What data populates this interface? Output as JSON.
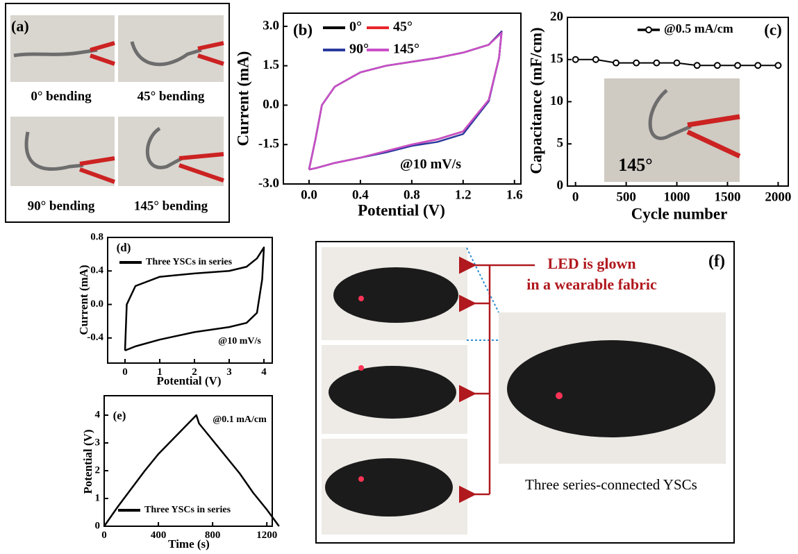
{
  "chart_data": [
    {
      "type": "line",
      "panel_label": "(b)",
      "xlabel": "Potential (V)",
      "ylabel": "Current (mA)",
      "annotation": "@10 mV/s",
      "xlim": [
        -0.2,
        1.65
      ],
      "xticks": [
        {
          "value": 0,
          "label": "0.0"
        },
        0.4,
        0.8,
        1.2,
        1.6
      ],
      "ylim": [
        -3.0,
        3.5
      ],
      "yticks": [
        {
          "value": -3,
          "label": "-3.0"
        },
        -1.5,
        {
          "value": 0,
          "label": "0.0"
        },
        1.5,
        {
          "value": 3,
          "label": "3.0"
        }
      ],
      "series": [
        {
          "name": "0°",
          "color": "#000000",
          "x": [
            0,
            0.05,
            0.1,
            0.2,
            0.4,
            0.6,
            0.8,
            1.0,
            1.2,
            1.4,
            1.5,
            1.48,
            1.4,
            1.2,
            1.0,
            0.8,
            0.6,
            0.4,
            0.2,
            0.05,
            0
          ],
          "values": [
            -2.45,
            -1.3,
            0.0,
            0.7,
            1.25,
            1.5,
            1.65,
            1.8,
            2.0,
            2.3,
            2.8,
            1.8,
            0.2,
            -1.0,
            -1.3,
            -1.5,
            -1.75,
            -2.0,
            -2.2,
            -2.4,
            -2.45
          ]
        },
        {
          "name": "45°",
          "color": "#e8262a",
          "x": [
            0,
            0.05,
            0.1,
            0.2,
            0.4,
            0.6,
            0.8,
            1.0,
            1.2,
            1.4,
            1.5,
            1.48,
            1.4,
            1.2,
            1.0,
            0.8,
            0.6,
            0.4,
            0.2,
            0.05,
            0
          ],
          "values": [
            -2.45,
            -1.3,
            0.0,
            0.7,
            1.25,
            1.5,
            1.65,
            1.8,
            2.0,
            2.3,
            2.8,
            1.8,
            0.2,
            -1.0,
            -1.3,
            -1.5,
            -1.75,
            -2.0,
            -2.2,
            -2.4,
            -2.45
          ]
        },
        {
          "name": "90°",
          "color": "#2b3a9e",
          "x": [
            0,
            0.05,
            0.1,
            0.2,
            0.4,
            0.6,
            0.8,
            1.0,
            1.2,
            1.4,
            1.5,
            1.48,
            1.4,
            1.2,
            1.0,
            0.8,
            0.6,
            0.4,
            0.2,
            0.05,
            0
          ],
          "values": [
            -2.45,
            -1.3,
            0.0,
            0.7,
            1.25,
            1.5,
            1.65,
            1.8,
            2.0,
            2.3,
            2.8,
            1.8,
            0.15,
            -1.1,
            -1.4,
            -1.55,
            -1.8,
            -2.0,
            -2.2,
            -2.4,
            -2.45
          ]
        },
        {
          "name": "145°",
          "color": "#c94fc9",
          "x": [
            0,
            0.05,
            0.1,
            0.2,
            0.4,
            0.6,
            0.8,
            1.0,
            1.2,
            1.4,
            1.5,
            1.48,
            1.4,
            1.2,
            1.0,
            0.8,
            0.6,
            0.4,
            0.2,
            0.05,
            0
          ],
          "values": [
            -2.45,
            -1.3,
            0.0,
            0.7,
            1.25,
            1.5,
            1.65,
            1.8,
            2.0,
            2.3,
            2.75,
            1.8,
            0.2,
            -1.0,
            -1.3,
            -1.5,
            -1.75,
            -2.0,
            -2.2,
            -2.4,
            -2.45
          ]
        }
      ]
    },
    {
      "type": "line",
      "panel_label": "(c)",
      "xlabel": "Cycle number",
      "ylabel": "Capacitance (mF/cm)",
      "annotation": "145°",
      "markers": true,
      "xlim": [
        -80,
        2100
      ],
      "xticks": [
        0,
        500,
        1000,
        1500,
        2000
      ],
      "ylim": [
        0,
        20
      ],
      "yticks": [
        0,
        5,
        10,
        15,
        20
      ],
      "series": [
        {
          "name": "@0.5 mA/cm",
          "color": "#000000",
          "x": [
            0,
            200,
            400,
            600,
            800,
            1000,
            1200,
            1400,
            1600,
            1800,
            2000
          ],
          "values": [
            15.0,
            15.0,
            14.6,
            14.6,
            14.6,
            14.6,
            14.3,
            14.3,
            14.3,
            14.3,
            14.3
          ]
        }
      ]
    },
    {
      "type": "line",
      "panel_label": "(d)",
      "xlabel": "Potential (V)",
      "ylabel": "Current (mA)",
      "annotation": "@10 mV/s",
      "xlim": [
        -0.5,
        4.24
      ],
      "xticks": [
        0,
        1,
        2,
        3,
        4
      ],
      "ylim": [
        -0.7,
        0.8
      ],
      "yticks": [
        -0.4,
        {
          "value": 0,
          "label": "0.0"
        },
        0.4,
        0.8
      ],
      "series": [
        {
          "name": "Three YSCs in series",
          "color": "#000000",
          "x": [
            0,
            0.05,
            0.3,
            1,
            2,
            3,
            3.5,
            3.8,
            4,
            3.95,
            3.8,
            3.5,
            3,
            2,
            1,
            0.3,
            0
          ],
          "values": [
            -0.55,
            0.0,
            0.22,
            0.33,
            0.37,
            0.4,
            0.45,
            0.55,
            0.68,
            0.3,
            -0.1,
            -0.22,
            -0.27,
            -0.33,
            -0.42,
            -0.5,
            -0.55
          ]
        }
      ]
    },
    {
      "type": "line",
      "panel_label": "(e)",
      "xlabel": "Time (s)",
      "ylabel": "Potential (V)",
      "annotation": "@0.1 mA/cm",
      "xlim": [
        0,
        1240
      ],
      "xticks": [
        0,
        400,
        800,
        1200
      ],
      "ylim": [
        0,
        4.7
      ],
      "yticks": [
        0,
        1,
        2,
        3,
        4
      ],
      "series": [
        {
          "name": "Three YSCs in series",
          "color": "#000000",
          "x": [
            0,
            100,
            200,
            300,
            400,
            500,
            600,
            680,
            700,
            800,
            900,
            1000,
            1100,
            1200,
            1290
          ],
          "values": [
            0,
            0.7,
            1.35,
            2.0,
            2.6,
            3.1,
            3.6,
            4.0,
            3.7,
            3.1,
            2.5,
            1.9,
            1.2,
            0.6,
            0
          ]
        }
      ]
    }
  ],
  "panels": {
    "a": {
      "label": "(a)",
      "captions": [
        "0° bending",
        "45° bending",
        "90° bending",
        "145° bending"
      ]
    },
    "f": {
      "label": "(f)",
      "callout": [
        "LED is glown",
        "in a wearable fabric"
      ],
      "caption": "Three series-connected YSCs"
    }
  }
}
